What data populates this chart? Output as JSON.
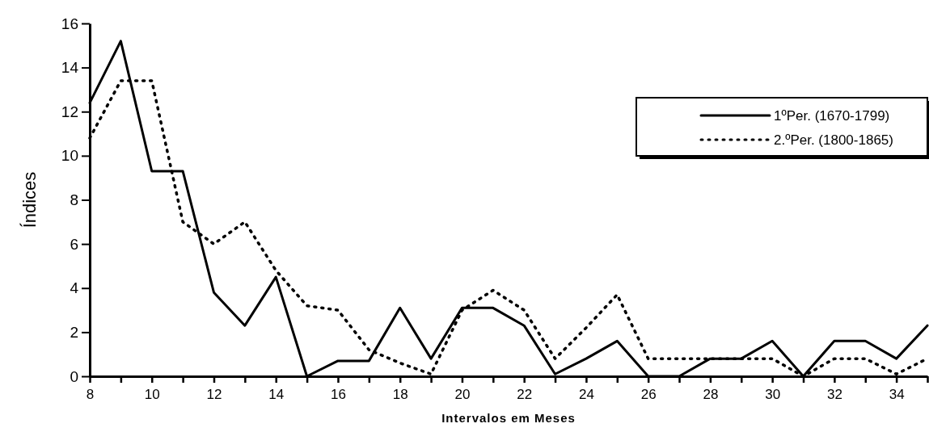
{
  "chart_data": {
    "type": "line",
    "xlabel": "Intervalos em Meses",
    "ylabel": "Índices",
    "x": [
      8,
      9,
      10,
      11,
      12,
      13,
      14,
      15,
      16,
      17,
      18,
      19,
      20,
      21,
      22,
      23,
      24,
      25,
      26,
      27,
      28,
      29,
      30,
      31,
      32,
      33,
      34,
      35
    ],
    "series": [
      {
        "name": "1ºPer. (1670-1799)",
        "color": "#000000",
        "line_style": "solid",
        "values": [
          12.4,
          15.2,
          9.3,
          9.3,
          3.8,
          2.3,
          4.5,
          0,
          0.7,
          0.7,
          3.1,
          0.8,
          3.1,
          3.1,
          2.3,
          0.1,
          0.8,
          1.6,
          0,
          0,
          0.8,
          0.8,
          1.6,
          0,
          1.6,
          1.6,
          0.8,
          2.3
        ]
      },
      {
        "name": "2.ºPer. (1800-1865)",
        "color": "#000000",
        "line_style": "dotted",
        "values": [
          10.8,
          13.4,
          13.4,
          7,
          6,
          7,
          4.8,
          3.2,
          3,
          1.2,
          0.6,
          0.1,
          3,
          3.9,
          3,
          0.8,
          2.2,
          3.7,
          0.8,
          0.8,
          0.8,
          0.8,
          0.8,
          0,
          0.8,
          0.8,
          0.1,
          0.8
        ]
      }
    ],
    "xlim": [
      8,
      35
    ],
    "xticks": [
      8,
      {
        "value": 9,
        "label": null
      },
      10,
      {
        "value": 11,
        "label": null
      },
      12,
      {
        "value": 13,
        "label": null
      },
      14,
      {
        "value": 15,
        "label": null
      },
      16,
      {
        "value": 17,
        "label": null
      },
      18,
      {
        "value": 19,
        "label": null
      },
      20,
      {
        "value": 21,
        "label": null
      },
      22,
      {
        "value": 23,
        "label": null
      },
      24,
      {
        "value": 25,
        "label": null
      },
      26,
      {
        "value": 27,
        "label": null
      },
      28,
      {
        "value": 29,
        "label": null
      },
      30,
      {
        "value": 31,
        "label": null
      },
      32,
      {
        "value": 33,
        "label": null
      },
      34,
      {
        "value": 35,
        "label": null
      }
    ],
    "ylim": [
      0,
      16
    ],
    "yticks": [
      0,
      2,
      4,
      6,
      8,
      10,
      12,
      14,
      16
    ],
    "legend": "top right",
    "grid": false,
    "marker": "none"
  }
}
